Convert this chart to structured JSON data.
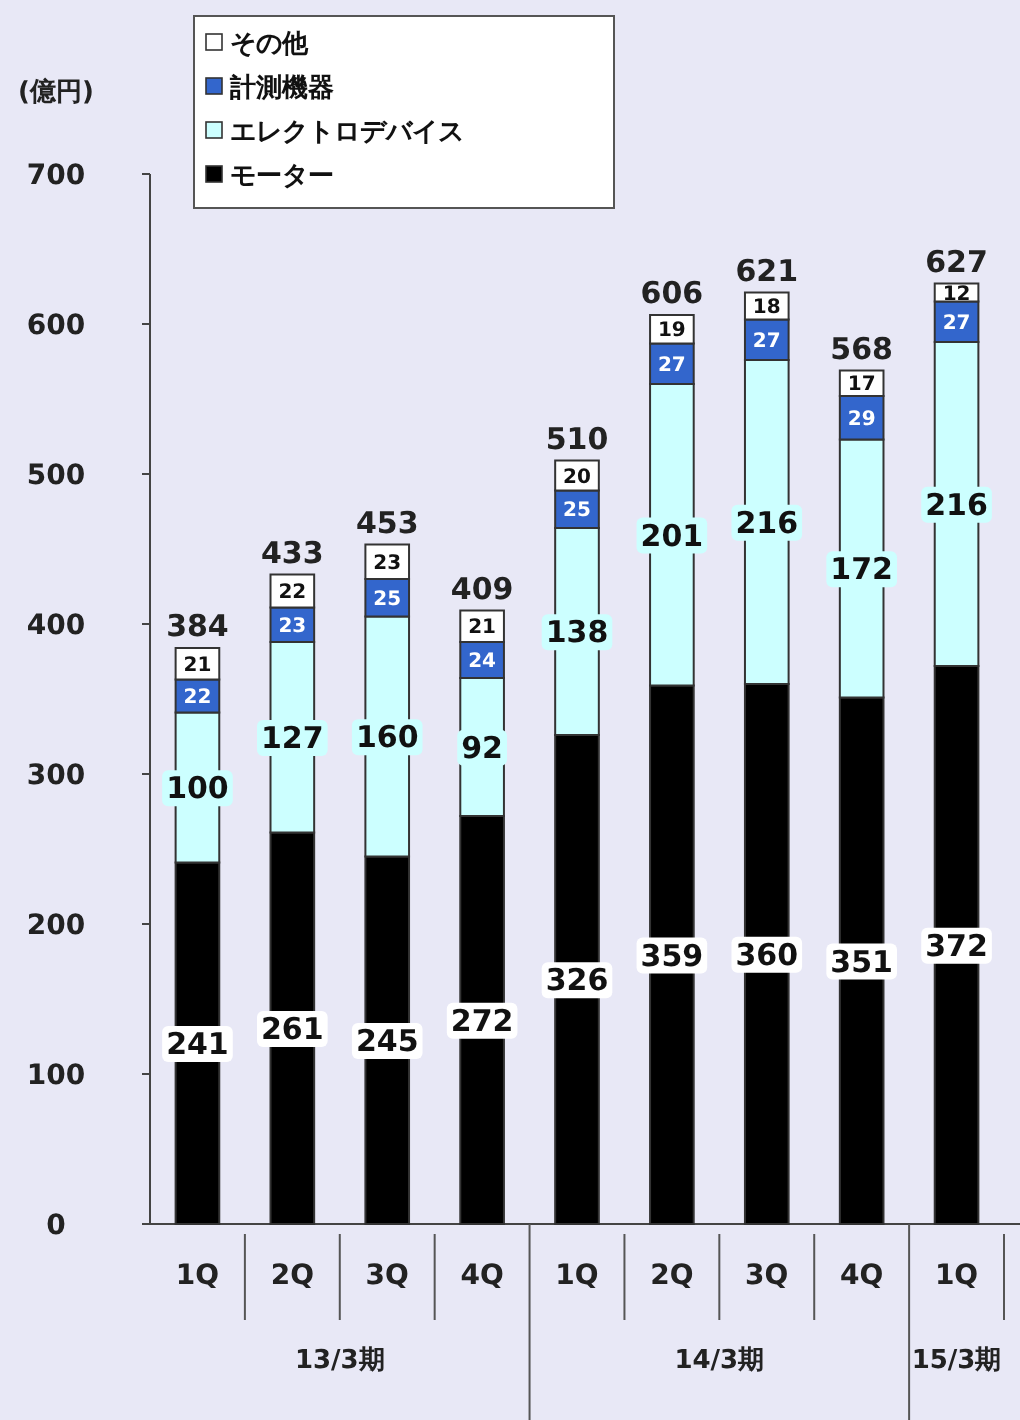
{
  "chart_data": {
    "type": "bar",
    "stacked": true,
    "ylabel": "(億円)",
    "categories": [
      "1Q",
      "2Q",
      "3Q",
      "4Q",
      "1Q",
      "2Q",
      "3Q",
      "4Q",
      "1Q"
    ],
    "series": [
      {
        "name": "モーター",
        "color": "#000000",
        "values": [
          241,
          261,
          245,
          272,
          326,
          359,
          360,
          351,
          372
        ]
      },
      {
        "name": "エレクトロデバイス",
        "color": "#ccffff",
        "values": [
          100,
          127,
          160,
          92,
          138,
          201,
          216,
          172,
          216
        ]
      },
      {
        "name": "計測機器",
        "color": "#3366cc",
        "values": [
          22,
          23,
          25,
          24,
          25,
          27,
          27,
          29,
          27
        ]
      },
      {
        "name": "その他",
        "color": "#ffffff",
        "values": [
          21,
          22,
          23,
          21,
          20,
          19,
          18,
          17,
          12
        ]
      }
    ],
    "totals": [
      "384",
      "433",
      "453",
      "409",
      "510",
      "606",
      "621",
      "568",
      "627"
    ],
    "data_labels": true,
    "ylim": [
      0,
      700
    ],
    "yticks": [
      0,
      100,
      200,
      300,
      400,
      500,
      600,
      700
    ],
    "legend": "top",
    "grid": false,
    "annotations": [
      "13/3期",
      "14/3期",
      "15/3期"
    ]
  }
}
